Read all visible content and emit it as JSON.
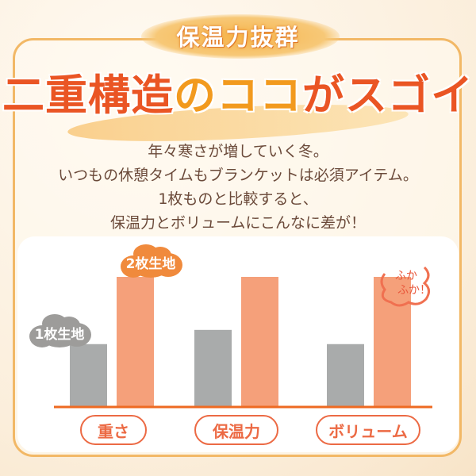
{
  "badge": "保温力抜群",
  "headline": {
    "part1": "二重構造",
    "part2": "のココ",
    "part3": "がスゴイ"
  },
  "body_lines": [
    "年々寒さが増していく冬。",
    "いつもの休憩タイムもブランケットは必須アイテム。",
    "1枚ものと比較すると、",
    "保温力とボリュームにこんなに差が！"
  ],
  "colors": {
    "single": "#a9abab",
    "double": "#f5a07a",
    "accent": "#ea5524",
    "axis": "#ee6a22"
  },
  "chart_data": {
    "type": "bar",
    "categories": [
      "重さ",
      "保温力",
      "ボリューム"
    ],
    "series": [
      {
        "name": "1枚生地",
        "values": [
          48,
          59,
          48
        ]
      },
      {
        "name": "2枚生地",
        "values": [
          100,
          100,
          100
        ]
      }
    ],
    "ylim": [
      0,
      100
    ],
    "grid": false,
    "annotations": [
      "ふか",
      "ふか！"
    ]
  }
}
